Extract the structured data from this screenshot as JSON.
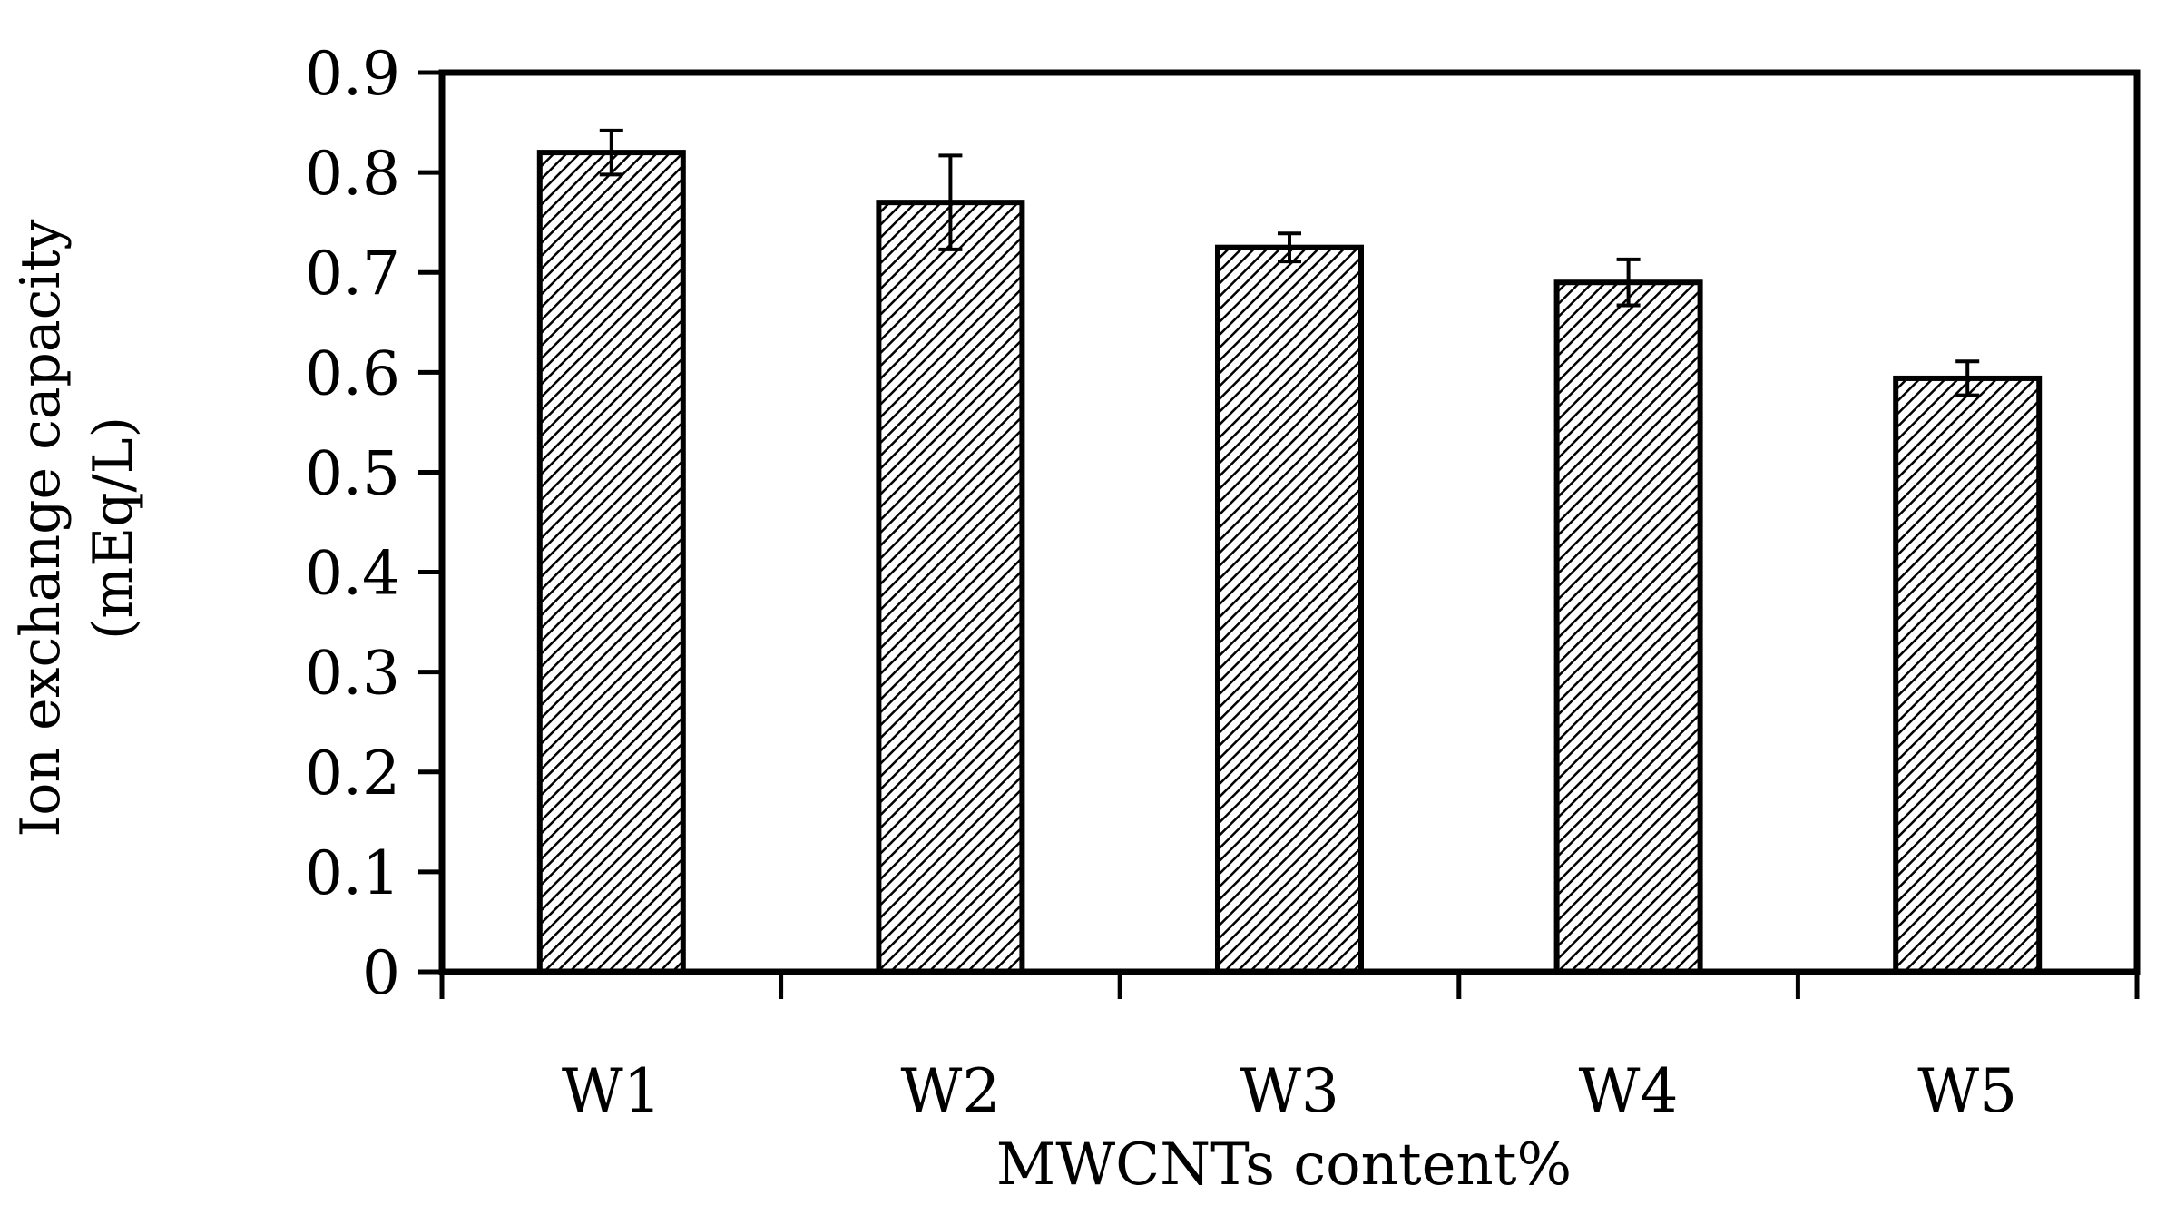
{
  "chart_data": {
    "type": "bar",
    "title": "",
    "xlabel": "MWCNTs content%",
    "ylabel_lines": [
      "Ion exchange capacity",
      "(mEq/L)"
    ],
    "categories": [
      "W1",
      "W2",
      "W3",
      "W4",
      "W5"
    ],
    "values": [
      0.82,
      0.77,
      0.725,
      0.69,
      0.594
    ],
    "error": [
      0.022,
      0.047,
      0.014,
      0.023,
      0.017
    ],
    "ylim": [
      0,
      0.9
    ],
    "yticks": [
      0,
      0.1,
      0.2,
      0.3,
      0.4,
      0.5,
      0.6,
      0.7,
      0.8,
      0.9
    ],
    "ytick_labels": [
      "0",
      "0.1",
      "0.2",
      "0.3",
      "0.4",
      "0.5",
      "0.6",
      "0.7",
      "0.8",
      "0.9"
    ],
    "grid": false,
    "bar_fill": "diagonal-hatch",
    "colors": {
      "bar_stroke": "#000000",
      "hatch": "#000000",
      "background": "#ffffff"
    }
  }
}
